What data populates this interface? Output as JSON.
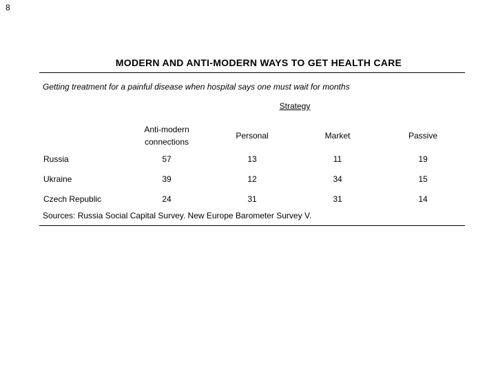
{
  "page": {
    "number": "8"
  },
  "slide": {
    "title": "MODERN AND ANTI-MODERN WAYS TO GET HEALTH CARE",
    "subtitle": "Getting treatment for a painful disease when hospital says one must wait for months",
    "sources": "Sources: Russia Social Capital Survey. New Europe Barometer Survey V."
  },
  "table": {
    "group_header": "Strategy",
    "columns": [
      "Anti-modern connections",
      "Personal",
      "Market",
      "Passive"
    ],
    "rows": [
      {
        "label": "Russia",
        "values": [
          "57",
          "13",
          "11",
          "19"
        ]
      },
      {
        "label": "Ukraine",
        "values": [
          "39",
          "12",
          "34",
          "15"
        ]
      },
      {
        "label": "Czech Republic",
        "values": [
          "24",
          "31",
          "31",
          "14"
        ]
      }
    ]
  },
  "colors": {
    "background": "#ffffff",
    "text": "#000000",
    "rule": "#000000"
  },
  "chart_data": {
    "type": "table",
    "title": "MODERN AND ANTI-MODERN WAYS TO GET HEALTH CARE",
    "subtitle": "Getting treatment for a painful disease when hospital says one must wait for months",
    "group_header": "Strategy",
    "categories": [
      "Anti-modern connections",
      "Personal",
      "Market",
      "Passive"
    ],
    "series": [
      {
        "name": "Russia",
        "values": [
          57,
          13,
          11,
          19
        ]
      },
      {
        "name": "Ukraine",
        "values": [
          39,
          12,
          34,
          15
        ]
      },
      {
        "name": "Czech Republic",
        "values": [
          24,
          31,
          31,
          14
        ]
      }
    ],
    "sources": "Sources: Russia Social Capital Survey. New Europe Barometer Survey V."
  }
}
